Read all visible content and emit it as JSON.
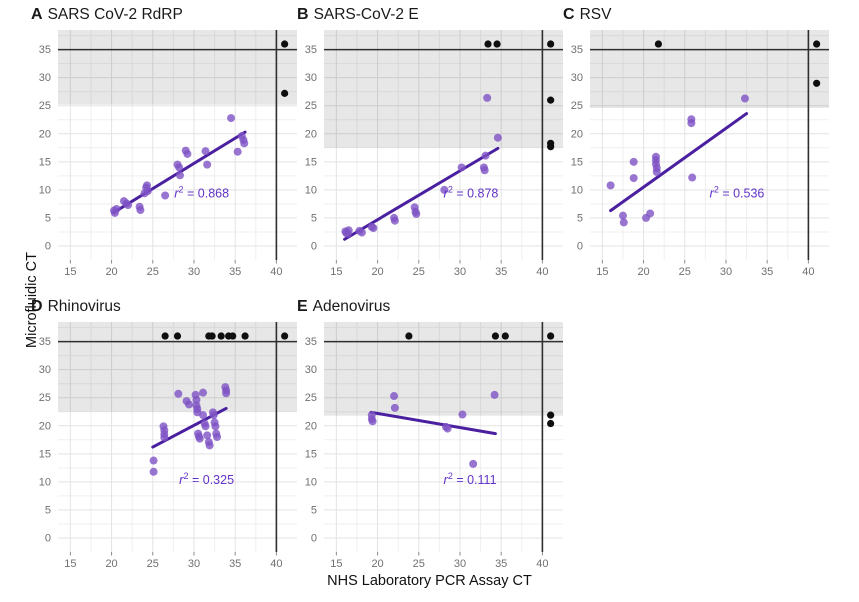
{
  "figure": {
    "xlabel": "NHS Laboratory PCR Assay CT",
    "ylabel": "Microfluidic CT"
  },
  "colors": {
    "point": "#7e52c4",
    "line": "#4a1fa0",
    "r2": "#6234c9",
    "censored": "#0f0f0f",
    "band": "rgba(0,0,0,0.095)",
    "refline": "#2f2f2f",
    "grid_major": "#e3e3e3",
    "grid_minor": "#efefef",
    "tick": "#707070"
  },
  "chart_data": [
    {
      "type": "scatter",
      "panel_label": "A",
      "title": "SARS CoV-2 RdRP",
      "r2": "0.868",
      "xlim": [
        13.5,
        42.5
      ],
      "ylim": [
        -2.5,
        38.5
      ],
      "xticks": [
        15,
        20,
        25,
        30,
        35,
        40
      ],
      "yticks": [
        0,
        5,
        10,
        15,
        20,
        25,
        30,
        35
      ],
      "shaded_band_y": [
        25.2,
        38.5
      ],
      "hline_y": 35,
      "vline_x": 40,
      "regression": [
        20.3,
        6.0,
        36.2,
        20.3
      ],
      "r2_pos": [
        27.6,
        8.6
      ],
      "points": [
        [
          20.3,
          6.3
        ],
        [
          20.4,
          5.9
        ],
        [
          20.6,
          6.6
        ],
        [
          21.5,
          8.0
        ],
        [
          21.8,
          7.6
        ],
        [
          22.0,
          7.3
        ],
        [
          23.4,
          7.0
        ],
        [
          23.5,
          6.4
        ],
        [
          24.0,
          9.4
        ],
        [
          24.2,
          10.4
        ],
        [
          24.3,
          10.8
        ],
        [
          24.4,
          9.8
        ],
        [
          26.5,
          9.0
        ],
        [
          28.0,
          14.5
        ],
        [
          28.2,
          14.0
        ],
        [
          28.3,
          12.6
        ],
        [
          29.0,
          17.0
        ],
        [
          29.2,
          16.4
        ],
        [
          31.4,
          16.9
        ],
        [
          31.6,
          14.5
        ],
        [
          34.5,
          22.8
        ],
        [
          35.3,
          16.8
        ],
        [
          35.8,
          19.6
        ],
        [
          36.0,
          18.9
        ],
        [
          36.1,
          18.3
        ]
      ],
      "censored_points": [
        [
          41,
          36
        ],
        [
          41,
          27.2
        ]
      ]
    },
    {
      "type": "scatter",
      "panel_label": "B",
      "title": "SARS-CoV-2 E",
      "r2": "0.878",
      "xlim": [
        13.5,
        42.5
      ],
      "ylim": [
        -2.5,
        38.5
      ],
      "xticks": [
        15,
        20,
        25,
        30,
        35,
        40
      ],
      "yticks": [
        0,
        5,
        10,
        15,
        20,
        25,
        30,
        35
      ],
      "shaded_band_y": [
        17.5,
        38.5
      ],
      "hline_y": 35,
      "vline_x": 40,
      "regression": [
        16.0,
        1.2,
        34.6,
        17.4
      ],
      "r2_pos": [
        28.0,
        8.6
      ],
      "points": [
        [
          16.1,
          2.6
        ],
        [
          16.2,
          2.3
        ],
        [
          16.4,
          2.2
        ],
        [
          16.5,
          2.8
        ],
        [
          17.8,
          2.7
        ],
        [
          18.1,
          2.4
        ],
        [
          19.3,
          3.4
        ],
        [
          19.5,
          3.2
        ],
        [
          22.0,
          5.0
        ],
        [
          22.1,
          4.5
        ],
        [
          24.5,
          6.9
        ],
        [
          24.6,
          6.1
        ],
        [
          24.7,
          5.7
        ],
        [
          28.1,
          10.0
        ],
        [
          30.2,
          14.0
        ],
        [
          32.9,
          14.0
        ],
        [
          33.0,
          13.5
        ],
        [
          33.1,
          16.1
        ],
        [
          33.3,
          26.4
        ],
        [
          34.6,
          19.3
        ]
      ],
      "censored_points": [
        [
          33.4,
          36
        ],
        [
          34.5,
          36
        ],
        [
          41,
          36
        ],
        [
          41,
          26
        ],
        [
          41,
          18.3
        ],
        [
          41,
          17.7
        ]
      ]
    },
    {
      "type": "scatter",
      "panel_label": "C",
      "title": "RSV",
      "r2": "0.536",
      "xlim": [
        13.5,
        42.5
      ],
      "ylim": [
        -2.5,
        38.5
      ],
      "xticks": [
        15,
        20,
        25,
        30,
        35,
        40
      ],
      "yticks": [
        0,
        5,
        10,
        15,
        20,
        25,
        30,
        35
      ],
      "shaded_band_y": [
        24.6,
        38.5
      ],
      "hline_y": 35,
      "vline_x": 40,
      "regression": [
        16.0,
        6.3,
        32.5,
        23.6
      ],
      "r2_pos": [
        28.0,
        8.6
      ],
      "points": [
        [
          16.0,
          10.8
        ],
        [
          17.5,
          5.4
        ],
        [
          17.6,
          4.2
        ],
        [
          18.8,
          15.0
        ],
        [
          18.8,
          12.1
        ],
        [
          20.3,
          5.0
        ],
        [
          20.8,
          5.8
        ],
        [
          21.5,
          15.9
        ],
        [
          21.5,
          15.3
        ],
        [
          21.5,
          14.6
        ],
        [
          21.6,
          13.9
        ],
        [
          21.6,
          13.2
        ],
        [
          25.8,
          22.6
        ],
        [
          25.8,
          21.9
        ],
        [
          25.9,
          12.2
        ],
        [
          32.3,
          26.3
        ]
      ],
      "censored_points": [
        [
          21.8,
          36
        ],
        [
          41,
          36
        ],
        [
          41,
          29
        ]
      ]
    },
    {
      "type": "scatter",
      "panel_label": "D",
      "title": "Rhinovirus",
      "r2": "0.325",
      "xlim": [
        13.5,
        42.5
      ],
      "ylim": [
        -2.5,
        38.5
      ],
      "xticks": [
        15,
        20,
        25,
        30,
        35,
        40
      ],
      "yticks": [
        0,
        5,
        10,
        15,
        20,
        25,
        30,
        35
      ],
      "shaded_band_y": [
        22.5,
        38.5
      ],
      "hline_y": 35,
      "vline_x": 40,
      "regression": [
        25.0,
        16.2,
        33.9,
        23.1
      ],
      "r2_pos": [
        28.2,
        9.6
      ],
      "points": [
        [
          25.1,
          13.8
        ],
        [
          25.1,
          11.8
        ],
        [
          26.3,
          19.9
        ],
        [
          26.4,
          19.2
        ],
        [
          26.4,
          18.5
        ],
        [
          26.4,
          17.9
        ],
        [
          28.1,
          25.7
        ],
        [
          29.1,
          24.4
        ],
        [
          29.4,
          23.8
        ],
        [
          30.2,
          25.5
        ],
        [
          30.3,
          24.6
        ],
        [
          30.3,
          23.6
        ],
        [
          30.4,
          23.0
        ],
        [
          30.4,
          22.4
        ],
        [
          30.5,
          18.6
        ],
        [
          30.6,
          18.1
        ],
        [
          30.7,
          17.7
        ],
        [
          31.1,
          25.9
        ],
        [
          31.1,
          21.9
        ],
        [
          31.3,
          20.4
        ],
        [
          31.4,
          19.9
        ],
        [
          31.6,
          18.3
        ],
        [
          31.8,
          17.1
        ],
        [
          31.9,
          16.5
        ],
        [
          32.3,
          22.4
        ],
        [
          32.4,
          21.9
        ],
        [
          32.5,
          20.6
        ],
        [
          32.6,
          19.9
        ],
        [
          32.7,
          18.6
        ],
        [
          32.8,
          18.0
        ],
        [
          33.8,
          26.9
        ],
        [
          33.9,
          26.3
        ],
        [
          33.9,
          25.8
        ]
      ],
      "censored_points": [
        [
          26.5,
          36
        ],
        [
          28.0,
          36
        ],
        [
          31.8,
          36
        ],
        [
          32.2,
          36
        ],
        [
          33.3,
          36
        ],
        [
          34.2,
          36
        ],
        [
          34.7,
          36
        ],
        [
          36.2,
          36
        ],
        [
          41,
          36
        ]
      ]
    },
    {
      "type": "scatter",
      "panel_label": "E",
      "title": "Adenovirus",
      "r2": "0.111",
      "xlim": [
        13.5,
        42.5
      ],
      "ylim": [
        -2.5,
        38.5
      ],
      "xticks": [
        15,
        20,
        25,
        30,
        35,
        40
      ],
      "yticks": [
        0,
        5,
        10,
        15,
        20,
        25,
        30,
        35
      ],
      "shaded_band_y": [
        21.8,
        38.5
      ],
      "hline_y": 35,
      "vline_x": 40,
      "regression": [
        19.2,
        22.4,
        34.3,
        18.6
      ],
      "r2_pos": [
        28.0,
        9.6
      ],
      "points": [
        [
          19.3,
          21.9
        ],
        [
          19.3,
          21.2
        ],
        [
          19.4,
          20.8
        ],
        [
          22.0,
          25.3
        ],
        [
          22.1,
          23.2
        ],
        [
          28.3,
          19.8
        ],
        [
          28.5,
          19.5
        ],
        [
          30.3,
          22.0
        ],
        [
          31.6,
          13.2
        ],
        [
          34.2,
          25.5
        ]
      ],
      "censored_points": [
        [
          23.8,
          36
        ],
        [
          34.3,
          36
        ],
        [
          35.5,
          36
        ],
        [
          41,
          36
        ],
        [
          41,
          21.9
        ],
        [
          41,
          20.4
        ]
      ]
    }
  ]
}
